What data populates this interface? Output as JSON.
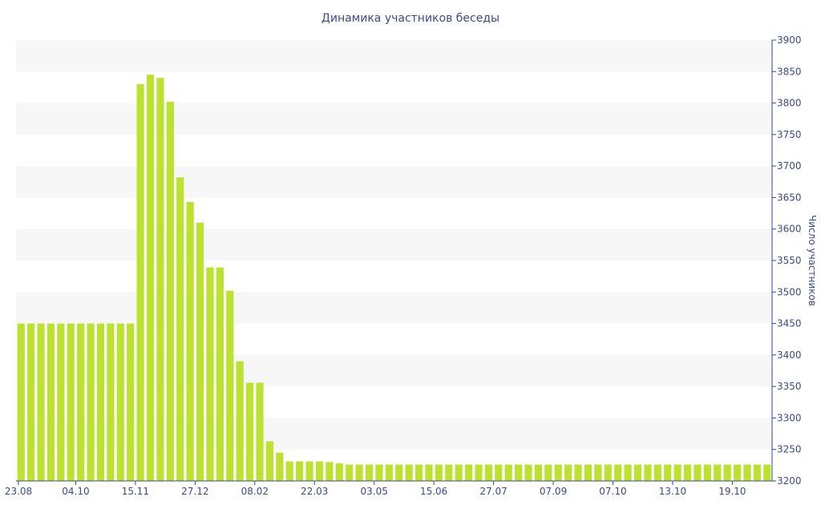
{
  "chart_data": {
    "type": "bar",
    "title": "Динамика участников беседы",
    "ylabel": "Число участников",
    "xlabel": "",
    "ylim": [
      3200,
      3900
    ],
    "yticks": [
      3200,
      3250,
      3300,
      3350,
      3400,
      3450,
      3500,
      3550,
      3600,
      3650,
      3700,
      3750,
      3800,
      3850,
      3900
    ],
    "xtick_labels": [
      "23.08",
      "04.10",
      "15.11",
      "27.12",
      "08.02",
      "22.03",
      "03.05",
      "15.06",
      "27.07",
      "07.09",
      "07.10",
      "13.10",
      "19.10"
    ],
    "grid": "horizontal alternating bands",
    "y_axis_side": "right",
    "bar_color": "#bde131",
    "axis_color": "#3a4a8c",
    "values": [
      3450,
      3450,
      3450,
      3450,
      3450,
      3450,
      3450,
      3450,
      3450,
      3450,
      3450,
      3450,
      3830,
      3845,
      3840,
      3802,
      3682,
      3643,
      3610,
      3539,
      3539,
      3502,
      3390,
      3356,
      3356,
      3263,
      3245,
      3231,
      3231,
      3231,
      3231,
      3230,
      3228,
      3226,
      3226,
      3226,
      3226,
      3226,
      3226,
      3226,
      3226,
      3226,
      3226,
      3226,
      3226,
      3226,
      3226,
      3226,
      3226,
      3226,
      3226,
      3226,
      3226,
      3226,
      3226,
      3226,
      3226,
      3226,
      3226,
      3226,
      3226,
      3226,
      3226,
      3226,
      3226,
      3226,
      3226,
      3226,
      3226,
      3226,
      3226,
      3226,
      3226,
      3226,
      3226,
      3226
    ]
  }
}
